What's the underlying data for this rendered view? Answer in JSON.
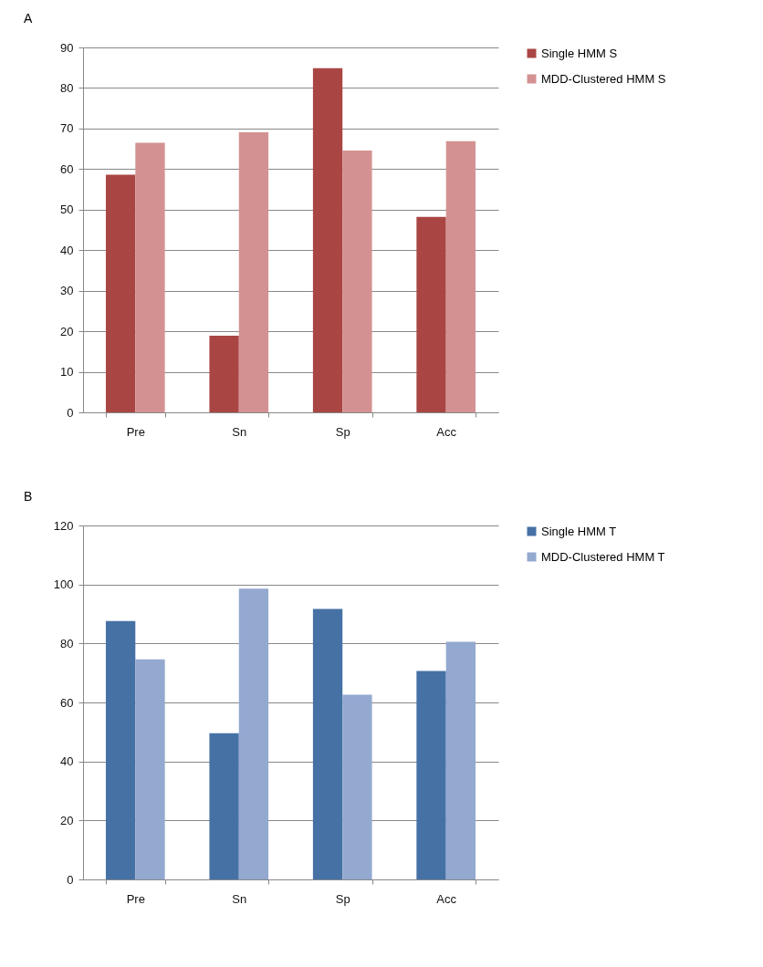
{
  "chart_data": [
    {
      "type": "bar",
      "title": "A",
      "categories": [
        "Pre",
        "Sn",
        "Sp",
        "Acc"
      ],
      "ylim": [
        0,
        90
      ],
      "yticks": [
        0,
        10,
        20,
        30,
        40,
        50,
        60,
        70,
        80,
        90
      ],
      "grid": "y",
      "legend": "right",
      "series": [
        {
          "name": "Single HMM S",
          "color": "#a94644",
          "values": [
            58.6,
            18.9,
            84.9,
            48.2
          ]
        },
        {
          "name": "MDD-Clustered HMM S",
          "color": "#d39291",
          "values": [
            66.5,
            69.1,
            64.6,
            66.9
          ]
        }
      ]
    },
    {
      "type": "bar",
      "title": "B",
      "categories": [
        "Pre",
        "Sn",
        "Sp",
        "Acc"
      ],
      "ylim": [
        0,
        120
      ],
      "yticks": [
        0,
        20,
        40,
        60,
        80,
        100,
        120
      ],
      "grid": "y",
      "legend": "right",
      "series": [
        {
          "name": "Single HMM T",
          "color": "#4671a5",
          "values": [
            87.6,
            49.6,
            91.7,
            70.7
          ]
        },
        {
          "name": "MDD-Clustered HMM T",
          "color": "#93a9d0",
          "values": [
            74.6,
            98.6,
            62.6,
            80.6
          ]
        }
      ]
    }
  ]
}
